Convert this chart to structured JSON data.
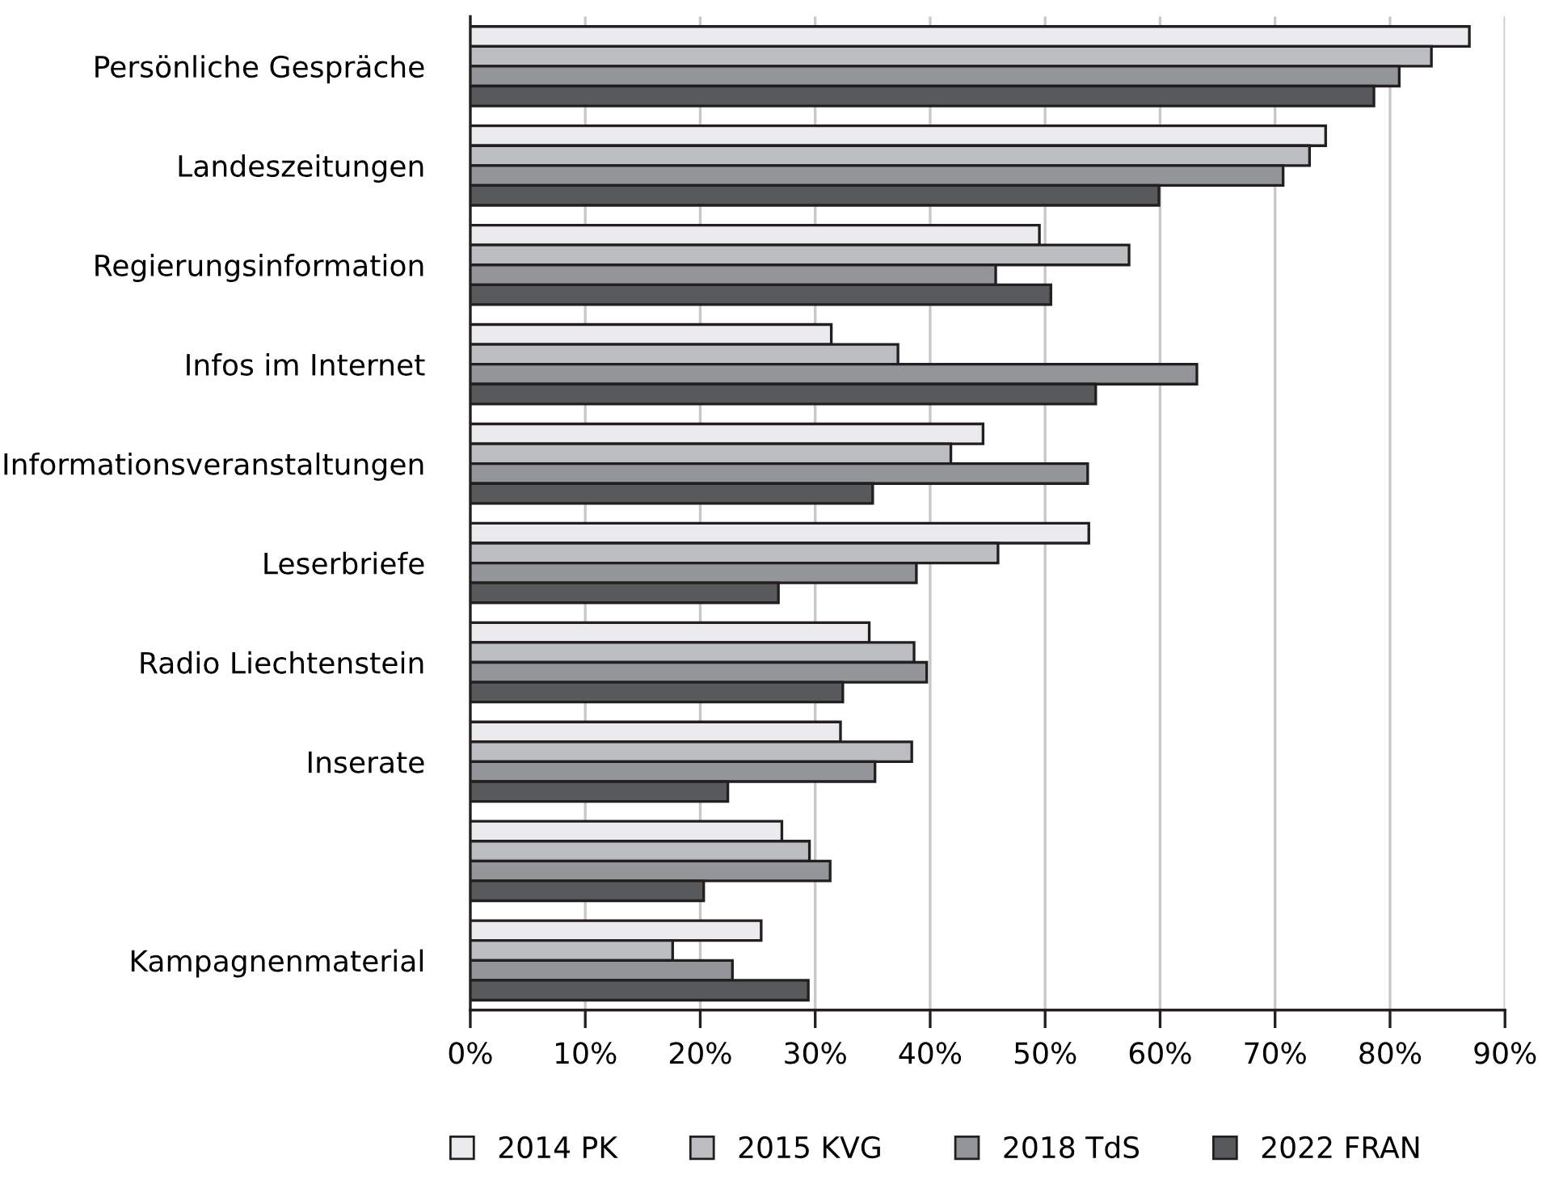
{
  "chart_data": {
    "type": "bar",
    "orientation": "horizontal",
    "categories": [
      "Persönliche Gespräche",
      "Landeszeitungen",
      "Regierungsinformation",
      "Infos im Internet",
      "Informationsveranstaltungen",
      "Leserbriefe",
      "Radio Liechtenstein",
      "Inserate",
      null,
      "Kampagnenmaterial"
    ],
    "series": [
      {
        "name": "2014 PK",
        "color": "#ebebed",
        "values": [
          86.9,
          74.4,
          49.5,
          31.4,
          44.6,
          53.8,
          34.7,
          32.2,
          27.1,
          25.3
        ]
      },
      {
        "name": "2015 KVG",
        "color": "#bcbdc0",
        "values": [
          83.6,
          73.0,
          57.3,
          37.2,
          41.8,
          45.9,
          38.6,
          38.4,
          29.5,
          17.6
        ]
      },
      {
        "name": "2018 TdS",
        "color": "#939598",
        "values": [
          80.8,
          70.7,
          45.7,
          63.2,
          53.7,
          38.8,
          39.7,
          35.2,
          31.3,
          22.8
        ]
      },
      {
        "name": "2022 FRAN",
        "color": "#58595b",
        "values": [
          78.6,
          59.9,
          50.5,
          54.4,
          35.0,
          26.8,
          32.4,
          22.4,
          20.3,
          29.4
        ]
      }
    ],
    "xlim": [
      0,
      90
    ],
    "xticks": [
      {
        "value": 0,
        "label": "0%"
      },
      {
        "value": 10,
        "label": "10%"
      },
      {
        "value": 20,
        "label": "20%"
      },
      {
        "value": 30,
        "label": "30%"
      },
      {
        "value": 40,
        "label": "40%"
      },
      {
        "value": 50,
        "label": "50%"
      },
      {
        "value": 60,
        "label": "60%"
      },
      {
        "value": 70,
        "label": "70%"
      },
      {
        "value": 80,
        "label": "80%"
      },
      {
        "value": 90,
        "label": "90%"
      }
    ],
    "grid": "x",
    "legend": "bottom"
  }
}
